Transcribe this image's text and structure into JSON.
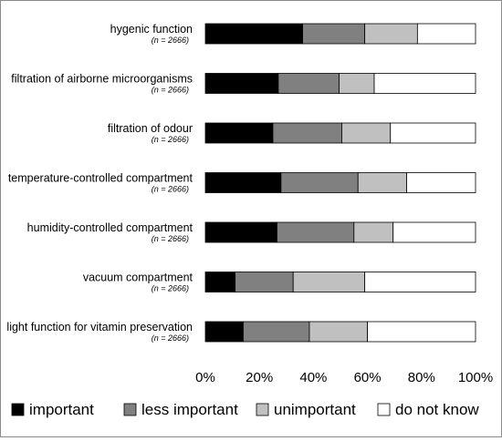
{
  "chart_data": {
    "type": "bar",
    "orientation": "horizontal",
    "stacked": true,
    "percent_stacked": true,
    "categories": [
      "hygenic function",
      "filtration of airborne microorganisms",
      "filtration of odour",
      "temperature-controlled compartment",
      "humidity-controlled compartment",
      "vacuum compartment",
      "light function for vitamin preservation"
    ],
    "sample_sizes": [
      "(n = 2666)",
      "(n = 2666)",
      "(n = 2666)",
      "(n = 2666)",
      "(n = 2666)",
      "(n = 2666)",
      "(n = 2666)"
    ],
    "series": [
      {
        "name": "important",
        "color": "#000000",
        "values": [
          36,
          27,
          25,
          28,
          26.5,
          11,
          14
        ]
      },
      {
        "name": "less important",
        "color": "#808080",
        "values": [
          23,
          22.5,
          25.5,
          28.5,
          28.5,
          21.5,
          24.5
        ]
      },
      {
        "name": "unimportant",
        "color": "#c0c0c0",
        "values": [
          19.5,
          13,
          18,
          18,
          14.5,
          26.5,
          21.5
        ]
      },
      {
        "name": "do not know",
        "color": "#ffffff",
        "values": [
          21.5,
          37.5,
          31.5,
          25.5,
          30.5,
          41,
          40
        ]
      }
    ],
    "xlim": [
      0,
      100
    ],
    "xticks": [
      "0%",
      "20%",
      "40%",
      "60%",
      "80%",
      "100%"
    ],
    "grid": false,
    "legend_position": "bottom"
  }
}
